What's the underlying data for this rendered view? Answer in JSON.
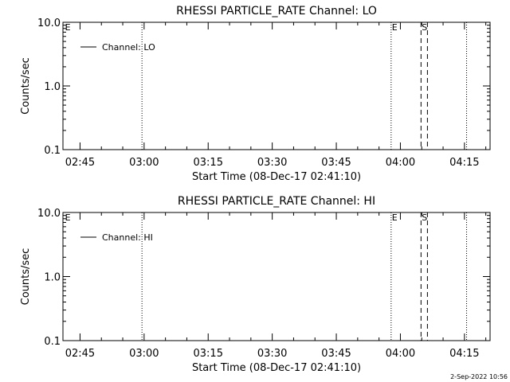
{
  "footer_timestamp": "2-Sep-2022 10:56",
  "chart_data": [
    {
      "type": "line",
      "title": "RHESSI PARTICLE_RATE Channel: LO",
      "xlabel": "Start Time (08-Dec-17 02:41:10)",
      "ylabel": "Counts/sec",
      "y_scale": "log",
      "ylim": [
        0.1,
        10.0
      ],
      "y_ticks": [
        "0.1",
        "1.0",
        "10.0"
      ],
      "xlim": [
        "02:41",
        "04:21"
      ],
      "x_ticks": [
        "02:45",
        "03:00",
        "03:15",
        "03:30",
        "03:45",
        "04:00",
        "04:15"
      ],
      "grid": false,
      "legend_position": "top-left",
      "series": [
        {
          "name": "Channel: LO",
          "values": []
        }
      ],
      "annotations": {
        "dotted_lines": [
          "02:59:30",
          "03:57:50",
          "04:15:30"
        ],
        "dashed_lines": [
          "04:04:50",
          "04:06:20"
        ],
        "labels": [
          {
            "text": "E",
            "at": "02:41:30"
          },
          {
            "text": "E",
            "at": "03:58:00"
          },
          {
            "text": "S",
            "at": "04:05:00"
          }
        ]
      }
    },
    {
      "type": "line",
      "title": "RHESSI PARTICLE_RATE Channel: HI",
      "xlabel": "Start Time (08-Dec-17 02:41:10)",
      "ylabel": "Counts/sec",
      "y_scale": "log",
      "ylim": [
        0.1,
        10.0
      ],
      "y_ticks": [
        "0.1",
        "1.0",
        "10.0"
      ],
      "xlim": [
        "02:41",
        "04:21"
      ],
      "x_ticks": [
        "02:45",
        "03:00",
        "03:15",
        "03:30",
        "03:45",
        "04:00",
        "04:15"
      ],
      "grid": false,
      "legend_position": "top-left",
      "series": [
        {
          "name": "Channel: HI",
          "values": []
        }
      ],
      "annotations": {
        "dotted_lines": [
          "02:59:30",
          "03:57:50",
          "04:15:30"
        ],
        "dashed_lines": [
          "04:04:50",
          "04:06:20"
        ],
        "labels": [
          {
            "text": "E",
            "at": "02:41:30"
          },
          {
            "text": "E",
            "at": "03:58:00"
          },
          {
            "text": "S",
            "at": "04:05:00"
          }
        ]
      }
    }
  ]
}
